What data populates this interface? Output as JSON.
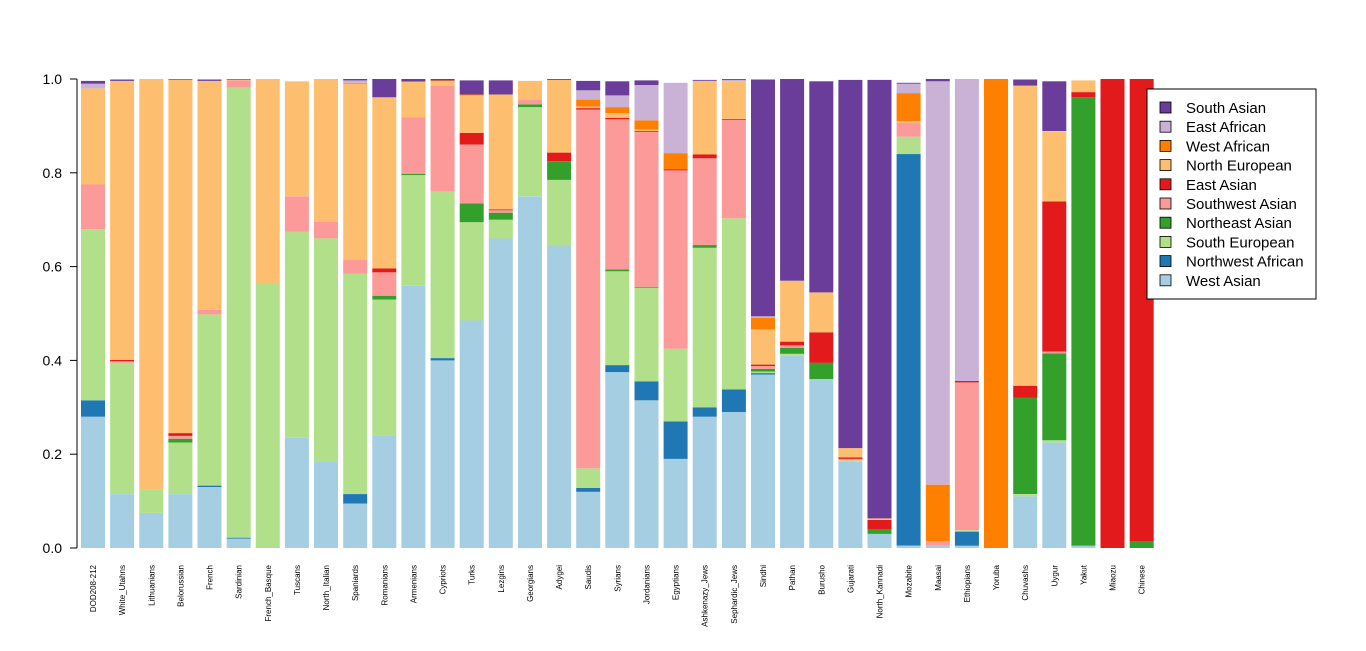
{
  "chart_data": {
    "type": "bar",
    "stacked": true,
    "title": "",
    "xlabel": "",
    "ylabel": "",
    "ylim": [
      0,
      1
    ],
    "yticks": [
      "0.0",
      "0.2",
      "0.4",
      "0.6",
      "0.8",
      "1.0"
    ],
    "grid": false,
    "legend_position": "right",
    "categories": [
      "DOD208-212",
      "White_Utahns",
      "Lithuanians",
      "Belorussian",
      "French",
      "Sardinian",
      "French_Basque",
      "Tuscans",
      "North_Italian",
      "Spaniards",
      "Romanians",
      "Armenians",
      "Cypriots",
      "Turks",
      "Lezgins",
      "Georgians",
      "Adygei",
      "Saudis",
      "Syrians",
      "Jordanians",
      "Egyptians",
      "Ashkenazy_Jews",
      "Sephardic_Jews",
      "Sindhi",
      "Pathan",
      "Burusho",
      "Gujarati",
      "North_Kannadi",
      "Mozabite",
      "Maasai",
      "Ethiopians",
      "Yoruba",
      "Chuvashs",
      "Uygur",
      "Yakut",
      "Miaozu",
      "Chinese"
    ],
    "legend_order": [
      "South Asian",
      "East African",
      "West African",
      "North European",
      "East Asian",
      "Southwest Asian",
      "Northeast Asian",
      "South European",
      "Northwest African",
      "West Asian"
    ],
    "series": [
      {
        "name": "West Asian",
        "color": "#a6cee3",
        "values": [
          0.28,
          0.115,
          0.075,
          0.115,
          0.13,
          0.02,
          0.0,
          0.235,
          0.185,
          0.095,
          0.24,
          0.56,
          0.4,
          0.485,
          0.66,
          0.75,
          0.645,
          0.12,
          0.375,
          0.315,
          0.19,
          0.28,
          0.29,
          0.37,
          0.41,
          0.36,
          0.185,
          0.03,
          0.005,
          0.005,
          0.005,
          0.0,
          0.11,
          0.225,
          0.005,
          0.0,
          0.0
        ]
      },
      {
        "name": "Northwest African",
        "color": "#1f78b4",
        "values": [
          0.035,
          0.0,
          0.0,
          0.0,
          0.003,
          0.002,
          0.0,
          0.0,
          0.0,
          0.02,
          0.0,
          0.0,
          0.005,
          0.0,
          0.0,
          0.0,
          0.0,
          0.008,
          0.015,
          0.04,
          0.08,
          0.02,
          0.048,
          0.003,
          0.0,
          0.0,
          0.0,
          0.0,
          0.835,
          0.0,
          0.03,
          0.0,
          0.0,
          0.0,
          0.0,
          0.0,
          0.0
        ]
      },
      {
        "name": "South European",
        "color": "#b2df8a",
        "values": [
          0.365,
          0.28,
          0.05,
          0.11,
          0.365,
          0.96,
          0.565,
          0.44,
          0.475,
          0.47,
          0.29,
          0.235,
          0.355,
          0.21,
          0.04,
          0.19,
          0.14,
          0.042,
          0.2,
          0.2,
          0.155,
          0.34,
          0.365,
          0.003,
          0.004,
          0.0,
          0.002,
          0.0,
          0.037,
          0.0,
          0.003,
          0.0,
          0.005,
          0.005,
          0.0,
          0.0,
          0.0
        ]
      },
      {
        "name": "Northeast Asian",
        "color": "#33a02c",
        "values": [
          0.0,
          0.0,
          0.0,
          0.008,
          0.0,
          0.0,
          0.0,
          0.0,
          0.0,
          0.0,
          0.008,
          0.003,
          0.0,
          0.04,
          0.015,
          0.006,
          0.04,
          0.0,
          0.004,
          0.002,
          0.0,
          0.006,
          0.0,
          0.006,
          0.013,
          0.035,
          0.0,
          0.01,
          0.0,
          0.0,
          0.0,
          0.0,
          0.205,
          0.185,
          0.955,
          0.0,
          0.015
        ]
      },
      {
        "name": "Southwest Asian",
        "color": "#fb9a99",
        "values": [
          0.095,
          0.003,
          0.0,
          0.006,
          0.01,
          0.015,
          0.0,
          0.075,
          0.035,
          0.03,
          0.05,
          0.12,
          0.225,
          0.125,
          0.005,
          0.01,
          0.0,
          0.765,
          0.32,
          0.33,
          0.38,
          0.185,
          0.21,
          0.006,
          0.005,
          0.0,
          0.003,
          0.0,
          0.03,
          0.01,
          0.315,
          0.0,
          0.0,
          0.004,
          0.0,
          0.0,
          0.0
        ]
      },
      {
        "name": "East Asian",
        "color": "#e31a1c",
        "values": [
          0.0,
          0.003,
          0.0,
          0.006,
          0.0,
          0.0,
          0.0,
          0.0,
          0.0,
          0.0,
          0.008,
          0.0,
          0.0,
          0.025,
          0.002,
          0.0,
          0.018,
          0.003,
          0.003,
          0.002,
          0.002,
          0.008,
          0.002,
          0.003,
          0.008,
          0.065,
          0.003,
          0.02,
          0.0,
          0.0,
          0.003,
          0.0,
          0.026,
          0.32,
          0.012,
          1.0,
          0.985
        ]
      },
      {
        "name": "North European",
        "color": "#fdbf6f",
        "values": [
          0.205,
          0.595,
          0.875,
          0.755,
          0.488,
          0.008,
          0.435,
          0.245,
          0.305,
          0.375,
          0.365,
          0.075,
          0.01,
          0.08,
          0.245,
          0.04,
          0.155,
          0.003,
          0.01,
          0.003,
          0.0,
          0.155,
          0.08,
          0.075,
          0.13,
          0.085,
          0.02,
          0.003,
          0.003,
          0.0,
          0.0,
          0.0,
          0.64,
          0.15,
          0.025,
          0.0,
          0.0
        ]
      },
      {
        "name": "West African",
        "color": "#ff7f00",
        "values": [
          0.0,
          0.0,
          0.0,
          0.0,
          0.0,
          0.0,
          0.0,
          0.0,
          0.0,
          0.002,
          0.0,
          0.002,
          0.002,
          0.002,
          0.0,
          0.0,
          0.0,
          0.015,
          0.013,
          0.02,
          0.035,
          0.0,
          0.0,
          0.025,
          0.0,
          0.0,
          0.0,
          0.0,
          0.06,
          0.12,
          0.0,
          1.0,
          0.0,
          0.0,
          0.0,
          0.0,
          0.0
        ]
      },
      {
        "name": "East African",
        "color": "#cab2d6",
        "values": [
          0.01,
          0.0,
          0.0,
          0.0,
          0.0,
          0.0,
          0.0,
          0.0,
          0.0,
          0.005,
          0.0,
          0.0,
          0.0,
          0.0,
          0.0,
          0.0,
          0.0,
          0.02,
          0.025,
          0.075,
          0.15,
          0.002,
          0.003,
          0.003,
          0.0,
          0.0,
          0.0,
          0.0,
          0.02,
          0.86,
          0.645,
          0.0,
          0.0,
          0.0,
          0.0,
          0.0,
          0.0
        ]
      },
      {
        "name": "South Asian",
        "color": "#6a3d9a",
        "values": [
          0.006,
          0.003,
          0.0,
          0.003,
          0.003,
          0.003,
          0.0,
          0.0,
          0.0,
          0.003,
          0.04,
          0.008,
          0.003,
          0.03,
          0.03,
          0.0,
          0.004,
          0.02,
          0.03,
          0.01,
          0.0,
          0.002,
          0.003,
          0.505,
          0.43,
          0.45,
          0.785,
          0.935,
          0.002,
          0.005,
          0.0,
          0.0,
          0.013,
          0.106,
          0.0,
          0.0,
          0.0
        ]
      }
    ]
  }
}
